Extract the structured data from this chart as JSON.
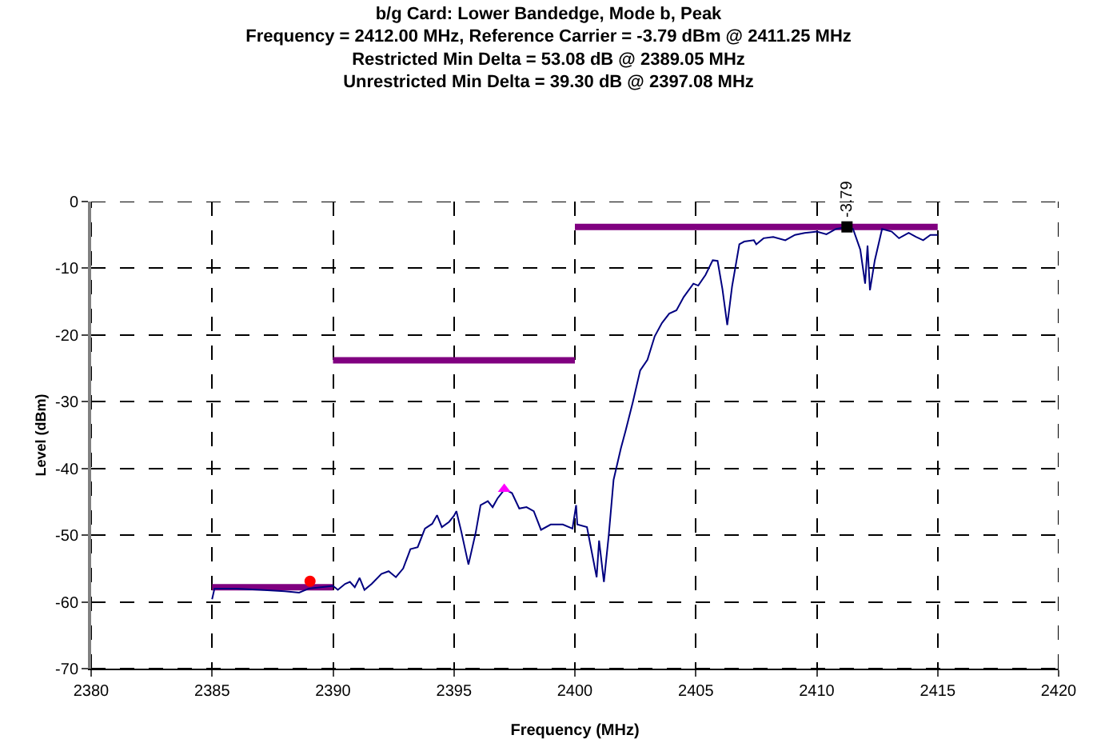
{
  "chart_data": {
    "type": "line",
    "title": "b/g Card: Lower Bandedge, Mode b, Peak\nFrequency = 2412.00 MHz, Reference Carrier = -3.79 dBm @ 2411.25 MHz\nRestricted Min Delta = 53.08 dB @ 2389.05 MHz\nUnrestricted Min Delta = 39.30 dB @ 2397.08 MHz",
    "xlabel": "Frequency (MHz)",
    "ylabel": "Level (dBm)",
    "xlim": [
      2380,
      2420
    ],
    "xticks": [
      2380,
      2385,
      2390,
      2395,
      2400,
      2405,
      2410,
      2415,
      2420
    ],
    "ylim": [
      -70,
      0
    ],
    "yticks": [
      -70,
      -60,
      -50,
      -40,
      -30,
      -20,
      -10,
      0
    ],
    "grid": true,
    "series": [
      {
        "color": "#800080",
        "marker": "none",
        "x": [
          2385,
          2390
        ],
        "values": [
          -57.8,
          -57.8
        ]
      },
      {
        "color": "#800080",
        "marker": "none",
        "x": [
          2390,
          2400
        ],
        "values": [
          -23.8,
          -23.8
        ]
      },
      {
        "color": "#800080",
        "marker": "none",
        "x": [
          2400,
          2415
        ],
        "values": [
          -3.8,
          -3.8
        ]
      },
      {
        "color": "#000080",
        "marker": "none",
        "x": [
          2385.0,
          2385.1,
          2386,
          2387,
          2388,
          2388.6,
          2389,
          2389.5,
          2390,
          2390.2,
          2390.5,
          2390.7,
          2390.9,
          2391.1,
          2391.3,
          2391.6,
          2392,
          2392.3,
          2392.6,
          2392.9,
          2393.2,
          2393.5,
          2393.8,
          2394.1,
          2394.3,
          2394.5,
          2394.8,
          2395.0,
          2395.1,
          2395.3,
          2395.6,
          2395.9,
          2396.1,
          2396.4,
          2396.6,
          2396.8,
          2397.1,
          2397.4,
          2397.7,
          2398.0,
          2398.3,
          2398.6,
          2399.0,
          2399.5,
          2399.9,
          2400.05,
          2400.1,
          2400.5,
          2400.9,
          2401.0,
          2401.2,
          2401.4,
          2401.6,
          2401.9,
          2402.1,
          2402.4,
          2402.7,
          2403.0,
          2403.3,
          2403.6,
          2403.9,
          2404.2,
          2404.5,
          2404.9,
          2405.1,
          2405.4,
          2405.7,
          2405.9,
          2406.1,
          2406.3,
          2406.5,
          2406.8,
          2407.0,
          2407.4,
          2407.5,
          2407.8,
          2408.2,
          2408.7,
          2409.1,
          2409.5,
          2410.0,
          2410.4,
          2410.8,
          2411.25,
          2411.5,
          2411.8,
          2412.0,
          2412.1,
          2412.2,
          2412.4,
          2412.7,
          2413.1,
          2413.4,
          2413.8,
          2414.1,
          2414.4,
          2414.7,
          2415.0
        ],
        "values": [
          -59.6,
          -58.0,
          -58.0,
          -58.2,
          -58.4,
          -58.6,
          -58.0,
          -57.8,
          -57.6,
          -58.2,
          -57.3,
          -57.0,
          -57.8,
          -56.4,
          -58.2,
          -57.3,
          -55.8,
          -55.4,
          -56.3,
          -55.0,
          -52.1,
          -51.8,
          -49.0,
          -48.3,
          -47.0,
          -48.8,
          -48.0,
          -47.1,
          -46.4,
          -49.4,
          -54.4,
          -49.6,
          -45.5,
          -44.9,
          -45.8,
          -44.5,
          -43.1,
          -43.7,
          -46.0,
          -45.8,
          -46.4,
          -49.2,
          -48.4,
          -48.4,
          -49.0,
          -45.5,
          -48.4,
          -48.8,
          -56.3,
          -50.8,
          -57.0,
          -50.0,
          -41.7,
          -37.0,
          -34.3,
          -30.0,
          -25.3,
          -23.7,
          -20.2,
          -18.2,
          -16.8,
          -16.3,
          -14.3,
          -12.3,
          -12.6,
          -11.0,
          -8.8,
          -8.9,
          -13.1,
          -18.5,
          -12.7,
          -6.4,
          -6.0,
          -5.8,
          -6.4,
          -5.5,
          -5.3,
          -5.8,
          -5.0,
          -4.7,
          -4.5,
          -4.9,
          -4.1,
          -3.8,
          -4.1,
          -7.2,
          -12.3,
          -6.6,
          -13.3,
          -8.8,
          -4.1,
          -4.5,
          -5.5,
          -4.7,
          -5.3,
          -5.8,
          -5.0,
          -5.0
        ]
      },
      {
        "type": "scatter",
        "color": "#ff0000",
        "marker": "circle",
        "x": [
          2389.05
        ],
        "values": [
          -56.9
        ]
      },
      {
        "type": "scatter",
        "color": "#ff00ff",
        "marker": "triangle",
        "x": [
          2397.08
        ],
        "values": [
          -43.1
        ]
      },
      {
        "type": "scatter",
        "color": "#000000",
        "marker": "square",
        "x": [
          2411.25
        ],
        "values": [
          -3.8
        ]
      }
    ],
    "annotations": [
      {
        "text": "-3.79",
        "x": 2411.25,
        "y": -3.8
      }
    ]
  }
}
